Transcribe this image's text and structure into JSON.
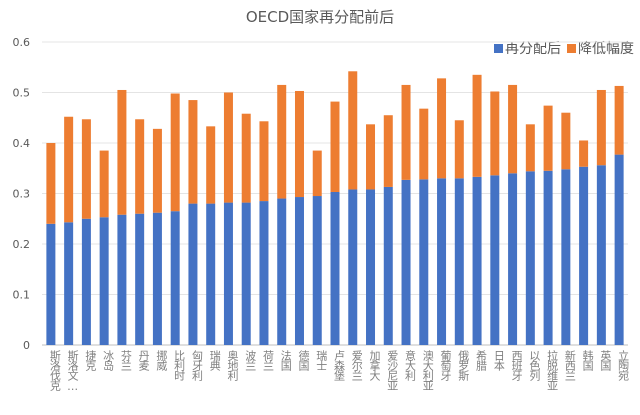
{
  "chart_data": {
    "type": "bar",
    "stacked": true,
    "title": "OECD国家再分配前后",
    "xlabel": "",
    "ylabel": "",
    "ylim": [
      0,
      0.6
    ],
    "yticks": [
      "0",
      "0.1",
      "0.2",
      "0.3",
      "0.4",
      "0.5",
      "0.6"
    ],
    "grid": true,
    "legend_position": "top-right",
    "categories": [
      "斯洛伐克",
      "斯洛文…",
      "捷克",
      "冰岛",
      "芬兰",
      "丹麦",
      "挪威",
      "比利时",
      "匈牙利",
      "瑞典",
      "奥地利",
      "波兰",
      "荷兰",
      "法国",
      "德国",
      "瑞士",
      "卢森堡",
      "爱尔兰",
      "加拿大",
      "爱沙尼亚",
      "意大利",
      "澳大利亚",
      "葡萄牙",
      "俄罗斯",
      "希腊",
      "日本",
      "西班牙",
      "以色列",
      "拉脱维亚",
      "新西兰",
      "韩国",
      "英国",
      "立陶宛"
    ],
    "series": [
      {
        "name": "再分配后",
        "color": "#4472C4",
        "values": [
          0.24,
          0.243,
          0.25,
          0.253,
          0.258,
          0.26,
          0.262,
          0.265,
          0.28,
          0.28,
          0.282,
          0.282,
          0.285,
          0.29,
          0.293,
          0.295,
          0.303,
          0.308,
          0.308,
          0.313,
          0.327,
          0.328,
          0.33,
          0.33,
          0.333,
          0.336,
          0.34,
          0.344,
          0.345,
          0.348,
          0.353,
          0.356,
          0.377
        ]
      },
      {
        "name": "降低幅度",
        "color": "#ED7D31",
        "values": [
          0.16,
          0.209,
          0.197,
          0.132,
          0.247,
          0.187,
          0.166,
          0.233,
          0.205,
          0.153,
          0.218,
          0.176,
          0.158,
          0.225,
          0.21,
          0.09,
          0.179,
          0.234,
          0.129,
          0.142,
          0.188,
          0.14,
          0.198,
          0.115,
          0.202,
          0.166,
          0.175,
          0.093,
          0.129,
          0.112,
          0.052,
          0.149,
          0.136
        ]
      }
    ]
  }
}
